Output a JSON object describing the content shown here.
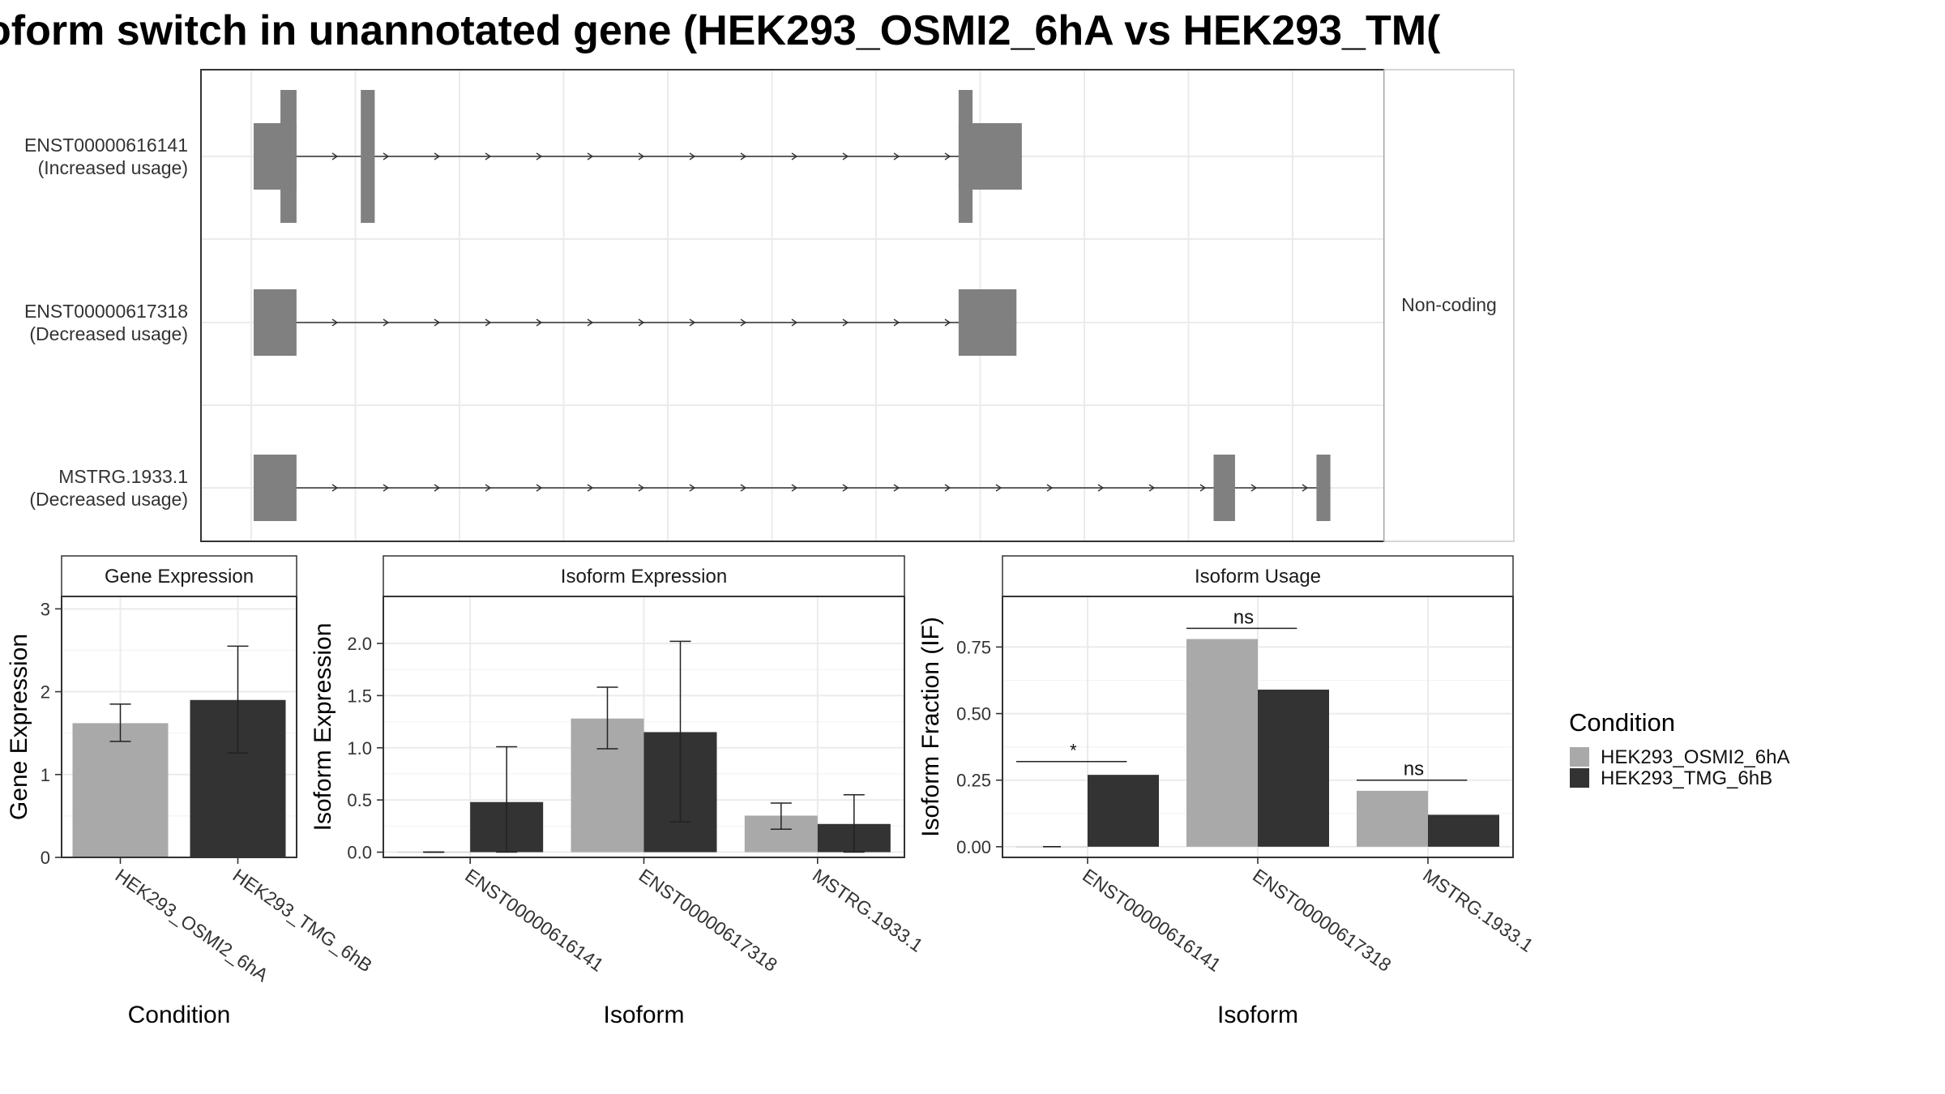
{
  "title": "oform switch in unannotated gene (HEK293_OSMI2_6hA vs HEK293_TM(",
  "colors": {
    "condition_a": "#a9a9a9",
    "condition_b": "#333333",
    "exon": "#808080",
    "grid": "#ebebeb",
    "panel_border": "#333333",
    "strip_bg": "#ffffff"
  },
  "chart_data": [
    {
      "type": "isoform_structure",
      "panel_label": "Non-coding",
      "x_span": [
        0,
        100
      ],
      "isoforms": [
        {
          "name": "ENST00000616141",
          "usage": "(Increased usage)",
          "exons": [
            {
              "start": 0.0,
              "end": 4.0,
              "kind": "tall"
            },
            {
              "start": 2.5,
              "end": 4.0,
              "kind": "taller"
            },
            {
              "start": 10.0,
              "end": 11.3,
              "kind": "taller"
            },
            {
              "start": 65.8,
              "end": 67.1,
              "kind": "taller"
            },
            {
              "start": 65.8,
              "end": 71.7,
              "kind": "tall"
            }
          ]
        },
        {
          "name": "ENST00000617318",
          "usage": "(Decreased usage)",
          "exons": [
            {
              "start": 0.0,
              "end": 4.0,
              "kind": "tall"
            },
            {
              "start": 65.8,
              "end": 71.2,
              "kind": "tall"
            }
          ]
        },
        {
          "name": "MSTRG.1933.1",
          "usage": "(Decreased usage)",
          "exons": [
            {
              "start": 0.0,
              "end": 4.0,
              "kind": "tall"
            },
            {
              "start": 89.6,
              "end": 91.6,
              "kind": "tall"
            },
            {
              "start": 99.2,
              "end": 100.5,
              "kind": "tall"
            }
          ]
        }
      ]
    },
    {
      "type": "bar",
      "strip": "Gene Expression",
      "xlabel": "Condition",
      "ylabel": "Gene Expression",
      "ylim": [
        0,
        3.15
      ],
      "yticks": [
        0,
        1,
        2,
        3
      ],
      "ytick_labels": [
        "0",
        "1",
        "2",
        "3"
      ],
      "categories": [
        "HEK293_OSMI2_6hA",
        "HEK293_TMG_6hB"
      ],
      "series": [
        {
          "values": [
            1.62,
            null
          ],
          "err_low": [
            1.4,
            null
          ],
          "err_high": [
            1.85,
            null
          ]
        },
        {
          "values": [
            null,
            1.9
          ],
          "err_low": [
            null,
            1.26
          ],
          "err_high": [
            null,
            2.55
          ]
        }
      ]
    },
    {
      "type": "bar",
      "strip": "Isoform Expression",
      "xlabel": "Isoform",
      "ylabel": "Isoform Expression",
      "ylim": [
        -0.05,
        2.45
      ],
      "yticks": [
        0,
        0.5,
        1.0,
        1.5,
        2.0
      ],
      "ytick_labels": [
        "0.0",
        "0.5",
        "1.0",
        "1.5",
        "2.0"
      ],
      "categories": [
        "ENST00000616141",
        "ENST00000617318",
        "MSTRG.1933.1"
      ],
      "series": [
        {
          "values": [
            0.0,
            1.28,
            0.35
          ],
          "err_low": [
            0.0,
            0.99,
            0.22
          ],
          "err_high": [
            0.0,
            1.58,
            0.47
          ]
        },
        {
          "values": [
            0.48,
            1.15,
            0.27
          ],
          "err_low": [
            0.0,
            0.29,
            0.0
          ],
          "err_high": [
            1.01,
            2.02,
            0.55
          ]
        }
      ]
    },
    {
      "type": "bar",
      "strip": "Isoform Usage",
      "xlabel": "Isoform",
      "ylabel": "Isoform Fraction (IF)",
      "ylim": [
        -0.04,
        0.94
      ],
      "yticks": [
        0,
        0.25,
        0.5,
        0.75
      ],
      "ytick_labels": [
        "0.00",
        "0.25",
        "0.50",
        "0.75"
      ],
      "categories": [
        "ENST00000616141",
        "ENST00000617318",
        "MSTRG.1933.1"
      ],
      "series": [
        {
          "values": [
            0.0,
            0.78,
            0.21
          ]
        },
        {
          "values": [
            0.27,
            0.59,
            0.12
          ]
        }
      ],
      "significance": [
        {
          "category": 0,
          "label": "*",
          "level": 0.32
        },
        {
          "category": 1,
          "label": "ns",
          "level": 0.82
        },
        {
          "category": 2,
          "label": "ns",
          "level": 0.25
        }
      ]
    }
  ],
  "legend": {
    "title": "Condition",
    "items": [
      "HEK293_OSMI2_6hA",
      "HEK293_TMG_6hB"
    ]
  }
}
